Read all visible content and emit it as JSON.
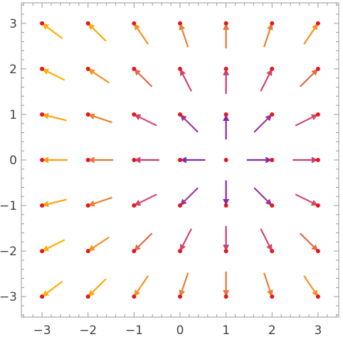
{
  "chart_data": {
    "type": "vector-field",
    "title": "",
    "xlabel": "",
    "ylabel": "",
    "xlim": [
      -3.45,
      3.45
    ],
    "ylim": [
      -3.45,
      3.45
    ],
    "xticks": [
      -3,
      -2,
      -1,
      0,
      1,
      2,
      3
    ],
    "yticks": [
      -3,
      -2,
      -1,
      0,
      1,
      2,
      3
    ],
    "xtick_labels": [
      "−3",
      "−2",
      "−1",
      "0",
      "1",
      "2",
      "3"
    ],
    "ytick_labels": [
      "−3",
      "−2",
      "−1",
      "0",
      "1",
      "2",
      "3"
    ],
    "minor_ticks_per_unit": 5,
    "frame": true,
    "grid": false,
    "point_color": "#e8141c",
    "arrow_direction_rule": "arrow at (x, y) points along the unit vector from (1, 0) toward (x, y); arrow head ends on the point",
    "arrow_length": 0.55,
    "color_scale": {
      "variable": "distance from (1, 0)",
      "domain": [
        0,
        4.47
      ],
      "stops": [
        "#4a13b5",
        "#8a2ea8",
        "#d64466",
        "#f08a24",
        "#ffb000"
      ]
    },
    "grid_points": {
      "x": [
        -3,
        -2,
        -1,
        0,
        1,
        2,
        3
      ],
      "y": [
        -3,
        -2,
        -1,
        0,
        1,
        2,
        3
      ]
    },
    "zero_vector_at": [
      1,
      0
    ]
  }
}
